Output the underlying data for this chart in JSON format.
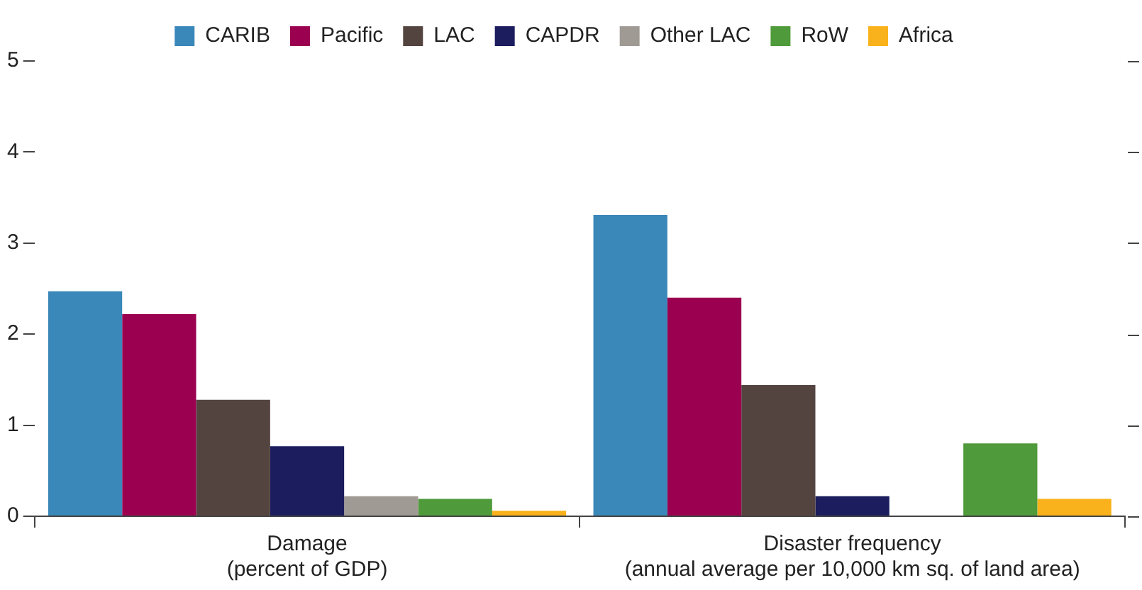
{
  "chart_data": {
    "type": "bar",
    "categories": [
      "Damage\n(percent of GDP)",
      "Disaster frequency\n(annual average per 10,000 km sq. of land area)"
    ],
    "series": [
      {
        "name": "CARIB",
        "color": "#3a87b9",
        "values": [
          2.47,
          3.31
        ]
      },
      {
        "name": "Pacific",
        "color": "#9b0050",
        "values": [
          2.22,
          2.4
        ]
      },
      {
        "name": "LAC",
        "color": "#54443f",
        "values": [
          1.28,
          1.44
        ]
      },
      {
        "name": "CAPDR",
        "color": "#1b1d5e",
        "values": [
          0.77,
          0.22
        ]
      },
      {
        "name": "Other LAC",
        "color": "#a09a95",
        "values": [
          0.22,
          0
        ]
      },
      {
        "name": "RoW",
        "color": "#4f9a3a",
        "values": [
          0.19,
          0.8
        ]
      },
      {
        "name": "Africa",
        "color": "#f9b21b",
        "values": [
          0.06,
          0.19
        ]
      }
    ],
    "ylim": [
      0,
      5
    ],
    "yticks": [
      0,
      1,
      2,
      3,
      4,
      5
    ],
    "grid": false,
    "legend": "top"
  }
}
